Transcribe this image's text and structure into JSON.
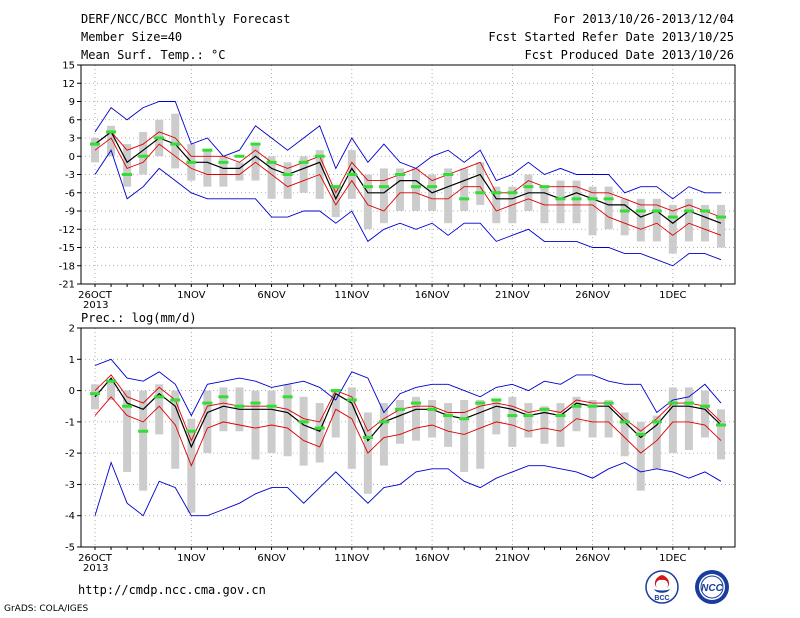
{
  "header": {
    "title": "DERF/NCC/BCC Monthly Forecast",
    "member": "Member Size=40",
    "variable": "Mean Surf. Temp.: °C",
    "period": "For 2013/10/26-2013/12/04",
    "started": "Fcst Started Refer Date 2013/10/25",
    "produced": "Fcst Produced Date 2013/10/26"
  },
  "footer": {
    "url": "http://cmdp.ncc.cma.gov.cn",
    "grads": "GrADS: COLA/IGES",
    "bcc_logo_text": "BCC",
    "ncc_logo_text": "NCC"
  },
  "colors": {
    "mean": "#000000",
    "band": "#dd0000",
    "envelope": "#0000cc",
    "box": "#cccccc",
    "marker": "#33dd33"
  },
  "chart_data": [
    {
      "type": "line",
      "title": "Mean Surf. Temp.: °C",
      "ylim": [
        -21,
        15
      ],
      "yticks": [
        -21,
        -18,
        -15,
        -12,
        -9,
        -6,
        -3,
        0,
        3,
        6,
        9,
        12,
        15
      ],
      "xticks": [
        {
          "i": 0,
          "label": "26OCT"
        },
        {
          "i": 6,
          "label": "1NOV"
        },
        {
          "i": 11,
          "label": "6NOV"
        },
        {
          "i": 16,
          "label": "11NOV"
        },
        {
          "i": 21,
          "label": "16NOV"
        },
        {
          "i": 26,
          "label": "21NOV"
        },
        {
          "i": 31,
          "label": "26NOV"
        },
        {
          "i": 36,
          "label": "1DEC"
        }
      ],
      "year_label": "2013",
      "grid": true,
      "series": [
        {
          "role": "max",
          "color": "#0000cc",
          "values": [
            4,
            8,
            6,
            8,
            9,
            9,
            2,
            3,
            0,
            1,
            5,
            3,
            1,
            3,
            5,
            -2,
            3,
            -1,
            2,
            -1,
            -2,
            0,
            1,
            -1,
            1,
            -4,
            -3,
            -1,
            -3,
            -2,
            -3,
            -3,
            -3,
            -6,
            -5,
            -5,
            -7,
            -5,
            -6,
            -6
          ]
        },
        {
          "role": "upper",
          "color": "#dd0000",
          "values": [
            2,
            4,
            1,
            2,
            4,
            3,
            0,
            0,
            0,
            -1,
            1,
            -1,
            -2,
            -1,
            0,
            -6,
            -1,
            -4,
            -4,
            -3,
            -2,
            -4,
            -3,
            -2,
            -1,
            -6,
            -6,
            -4,
            -5,
            -5,
            -5,
            -6,
            -6,
            -7,
            -8,
            -8,
            -9,
            -8,
            -9,
            -10
          ]
        },
        {
          "role": "mean",
          "color": "#000000",
          "values": [
            2,
            4,
            -1,
            1,
            3,
            2,
            -1,
            -1,
            -2,
            -2,
            0,
            -2,
            -3,
            -2,
            -1,
            -7,
            -2,
            -6,
            -6,
            -4,
            -4,
            -6,
            -5,
            -4,
            -3,
            -7,
            -7,
            -6,
            -6,
            -7,
            -6,
            -7,
            -8,
            -8,
            -10,
            -9,
            -11,
            -9,
            -10,
            -11
          ]
        },
        {
          "role": "lower",
          "color": "#dd0000",
          "values": [
            1,
            3,
            -2,
            -1,
            2,
            0,
            -2,
            -3,
            -3,
            -3,
            -1,
            -3,
            -5,
            -4,
            -3,
            -8,
            -4,
            -8,
            -9,
            -6,
            -6,
            -7,
            -7,
            -5,
            -5,
            -9,
            -8,
            -7,
            -8,
            -8,
            -8,
            -8,
            -10,
            -11,
            -12,
            -11,
            -13,
            -11,
            -12,
            -13
          ]
        },
        {
          "role": "min",
          "color": "#0000cc",
          "values": [
            -3,
            1,
            -7,
            -5,
            -2,
            -4,
            -6,
            -7,
            -7,
            -7,
            -7,
            -10,
            -10,
            -9,
            -9,
            -11,
            -9,
            -14,
            -12,
            -11,
            -12,
            -11,
            -13,
            -11,
            -11,
            -14,
            -13,
            -12,
            -14,
            -14,
            -14,
            -15,
            -15,
            -16,
            -16,
            -17,
            -18,
            -16,
            -16,
            -17
          ]
        },
        {
          "role": "box_high",
          "color": "#cccccc",
          "values": [
            3,
            5,
            2,
            4,
            6,
            7,
            2,
            1,
            0,
            -1,
            2,
            0,
            -1,
            0,
            1,
            -5,
            1,
            -3,
            -2,
            -2,
            -2,
            -3,
            -2,
            -2,
            -1,
            -5,
            -5,
            -3,
            -5,
            -4,
            -4,
            -5,
            -5,
            -7,
            -7,
            -7,
            -8,
            -7,
            -8,
            -8
          ]
        },
        {
          "role": "box_low",
          "color": "#cccccc",
          "values": [
            -1,
            0,
            -5,
            -3,
            0,
            -2,
            -4,
            -5,
            -5,
            -4,
            -4,
            -7,
            -7,
            -6,
            -7,
            -10,
            -7,
            -12,
            -11,
            -9,
            -9,
            -9,
            -11,
            -9,
            -8,
            -11,
            -11,
            -9,
            -11,
            -11,
            -11,
            -13,
            -12,
            -13,
            -14,
            -14,
            -16,
            -14,
            -14,
            -15
          ]
        },
        {
          "role": "marker",
          "color": "#33dd33",
          "values": [
            2,
            4,
            -3,
            0,
            3,
            2,
            -1,
            1,
            -1,
            0,
            2,
            -1,
            -3,
            -1,
            0,
            -5,
            -3,
            -5,
            -5,
            -3,
            -5,
            -5,
            -3,
            -7,
            -6,
            -6,
            -6,
            -5,
            -5,
            -7,
            -7,
            -7,
            -7,
            -9,
            -9,
            -9,
            -10,
            -9,
            -9,
            -10
          ]
        }
      ]
    },
    {
      "type": "line",
      "title": "Prec.: log(mm/d)",
      "ylim": [
        -5,
        2
      ],
      "yticks": [
        -5,
        -4,
        -3,
        -2,
        -1,
        0,
        1,
        2
      ],
      "xticks": [
        {
          "i": 0,
          "label": "26OCT"
        },
        {
          "i": 6,
          "label": "1NOV"
        },
        {
          "i": 11,
          "label": "6NOV"
        },
        {
          "i": 16,
          "label": "11NOV"
        },
        {
          "i": 21,
          "label": "16NOV"
        },
        {
          "i": 26,
          "label": "21NOV"
        },
        {
          "i": 31,
          "label": "26NOV"
        },
        {
          "i": 36,
          "label": "1DEC"
        }
      ],
      "year_label": "2013",
      "grid": true,
      "series": [
        {
          "role": "max",
          "color": "#0000cc",
          "values": [
            0.8,
            1.0,
            0.4,
            0.3,
            0.6,
            0.2,
            -0.8,
            0.2,
            0.3,
            0.4,
            0.3,
            0.1,
            0.2,
            0.3,
            0.1,
            -0.3,
            0.6,
            0.4,
            -0.7,
            -0.1,
            0.1,
            0.2,
            0.2,
            0.0,
            -0.2,
            0.1,
            0.2,
            0.0,
            0.3,
            0.2,
            0.5,
            0.5,
            0.3,
            0.2,
            0.2,
            -0.7,
            -0.3,
            -0.2,
            0.2,
            -0.4
          ]
        },
        {
          "role": "upper",
          "color": "#dd0000",
          "values": [
            0.0,
            0.5,
            -0.2,
            -0.4,
            0.1,
            -0.3,
            -1.6,
            -0.5,
            -0.4,
            -0.5,
            -0.5,
            -0.5,
            -0.6,
            -0.9,
            -1.0,
            0.0,
            -0.2,
            -1.3,
            -0.9,
            -0.6,
            -0.5,
            -0.5,
            -0.7,
            -0.7,
            -0.5,
            -0.4,
            -0.5,
            -0.7,
            -0.6,
            -0.7,
            -0.3,
            -0.4,
            -0.4,
            -0.9,
            -1.3,
            -0.9,
            -0.4,
            -0.4,
            -0.5,
            -1.0
          ]
        },
        {
          "role": "mean",
          "color": "#000000",
          "values": [
            -0.2,
            0.4,
            -0.4,
            -0.6,
            -0.1,
            -0.5,
            -1.8,
            -0.7,
            -0.5,
            -0.6,
            -0.6,
            -0.6,
            -0.7,
            -1.1,
            -1.3,
            -0.1,
            -0.4,
            -1.6,
            -1.0,
            -0.8,
            -0.6,
            -0.6,
            -0.8,
            -0.9,
            -0.7,
            -0.5,
            -0.6,
            -0.8,
            -0.7,
            -0.8,
            -0.4,
            -0.5,
            -0.5,
            -1.0,
            -1.5,
            -1.1,
            -0.5,
            -0.5,
            -0.6,
            -1.1
          ]
        },
        {
          "role": "lower",
          "color": "#dd0000",
          "values": [
            -0.8,
            -0.2,
            -0.8,
            -1.0,
            -0.5,
            -1.1,
            -2.4,
            -1.2,
            -1.0,
            -1.1,
            -1.2,
            -1.1,
            -1.2,
            -1.6,
            -1.8,
            -0.6,
            -0.9,
            -2.0,
            -1.5,
            -1.4,
            -1.2,
            -1.1,
            -1.3,
            -1.4,
            -1.2,
            -1.0,
            -1.1,
            -1.3,
            -1.2,
            -1.3,
            -0.9,
            -1.0,
            -1.0,
            -1.5,
            -2.0,
            -1.6,
            -1.0,
            -1.0,
            -1.1,
            -1.6
          ]
        },
        {
          "role": "min",
          "color": "#0000cc",
          "values": [
            -4.0,
            -2.3,
            -3.6,
            -4.0,
            -2.9,
            -3.1,
            -4.0,
            -4.0,
            -3.8,
            -3.6,
            -3.3,
            -3.1,
            -3.1,
            -3.6,
            -3.1,
            -2.6,
            -3.1,
            -3.6,
            -3.1,
            -3.0,
            -2.6,
            -2.5,
            -2.5,
            -2.9,
            -3.1,
            -2.8,
            -2.6,
            -2.4,
            -2.4,
            -2.5,
            -2.6,
            -2.8,
            -2.5,
            -2.3,
            -2.6,
            -2.5,
            -2.6,
            -2.8,
            -2.6,
            -2.9
          ]
        },
        {
          "role": "box_high",
          "color": "#cccccc",
          "values": [
            0.2,
            0.3,
            0.0,
            0.0,
            0.2,
            0.0,
            -0.9,
            0.0,
            0.1,
            0.1,
            0.0,
            0.0,
            0.2,
            -0.2,
            -0.4,
            0.0,
            0.1,
            -0.7,
            -0.4,
            -0.3,
            -0.2,
            -0.3,
            -0.4,
            -0.3,
            -0.3,
            -0.3,
            -0.2,
            -0.4,
            -0.5,
            -0.4,
            -0.2,
            -0.3,
            -0.3,
            -0.7,
            -1.0,
            -0.8,
            0.1,
            0.1,
            0.0,
            -0.6
          ]
        },
        {
          "role": "box_low",
          "color": "#cccccc",
          "values": [
            -0.6,
            -0.3,
            -2.6,
            -3.2,
            -1.4,
            -2.5,
            -3.9,
            -2.0,
            -1.3,
            -1.3,
            -2.2,
            -2.0,
            -2.1,
            -2.4,
            -2.3,
            -1.5,
            -2.5,
            -3.3,
            -2.4,
            -1.7,
            -1.6,
            -1.5,
            -1.8,
            -2.6,
            -2.5,
            -1.4,
            -1.8,
            -1.5,
            -1.7,
            -1.8,
            -1.3,
            -1.5,
            -1.5,
            -2.1,
            -3.2,
            -2.5,
            -2.0,
            -1.9,
            -1.5,
            -2.2
          ]
        },
        {
          "role": "marker",
          "color": "#33dd33",
          "values": [
            -0.1,
            0.3,
            -0.5,
            -1.3,
            -0.2,
            -0.3,
            -1.3,
            -0.4,
            -0.2,
            -0.5,
            -0.4,
            -0.5,
            -0.2,
            -1.0,
            -1.2,
            0.0,
            -0.3,
            -1.5,
            -1.0,
            -0.6,
            -0.4,
            -0.6,
            -0.8,
            -0.9,
            -0.4,
            -0.3,
            -0.8,
            -0.8,
            -0.6,
            -0.8,
            -0.5,
            -0.5,
            -0.4,
            -1.0,
            -1.4,
            -1.0,
            -0.4,
            -0.4,
            -0.5,
            -1.1
          ]
        }
      ]
    }
  ]
}
